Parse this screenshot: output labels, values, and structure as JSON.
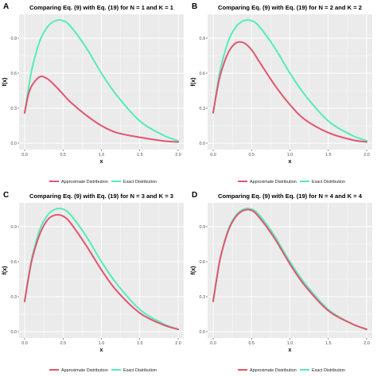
{
  "colors": {
    "approx": "#e0566e",
    "exact": "#54ecbb",
    "panel_bg": "#ebebeb",
    "grid": "#ffffff"
  },
  "legend": {
    "approx_label": "Approximate Distribution",
    "exact_label": "Exact Distribution"
  },
  "chart_data": [
    {
      "letter": "A",
      "type": "line",
      "title": "Comparing Eq. (9) with Eq. (19) for N = 1 and K = 1",
      "xlabel": "x",
      "ylabel": "f(x)",
      "xlim": [
        0,
        2
      ],
      "ylim": [
        0,
        1.05
      ],
      "xticks": [
        "0.0",
        "0.5",
        "1.0",
        "1.5",
        "2.0"
      ],
      "yticks": [
        "0.0",
        "0.3",
        "0.6",
        "0.9"
      ],
      "x": [
        0,
        0.05,
        0.1,
        0.2,
        0.3,
        0.4,
        0.5,
        0.6,
        0.8,
        1.0,
        1.2,
        1.5,
        1.8,
        2.0
      ],
      "series": [
        {
          "name": "Approximate Distribution",
          "values": [
            0.26,
            0.42,
            0.5,
            0.57,
            0.55,
            0.49,
            0.42,
            0.35,
            0.24,
            0.15,
            0.09,
            0.05,
            0.02,
            0.01
          ]
        },
        {
          "name": "Exact Distribution",
          "values": [
            0.26,
            0.47,
            0.65,
            0.88,
            1.0,
            1.05,
            1.05,
            1.0,
            0.82,
            0.6,
            0.41,
            0.19,
            0.07,
            0.02
          ]
        }
      ]
    },
    {
      "letter": "B",
      "type": "line",
      "title": "Comparing Eq. (9) with Eq. (19) for N = 2 and K = 2",
      "xlabel": "x",
      "ylabel": "f(x)",
      "xlim": [
        0,
        2
      ],
      "ylim": [
        0,
        1.05
      ],
      "xticks": [
        "0.0",
        "0.5",
        "1.0",
        "1.5",
        "2.0"
      ],
      "yticks": [
        "0.0",
        "0.3",
        "0.6",
        "0.9"
      ],
      "x": [
        0,
        0.05,
        0.1,
        0.2,
        0.3,
        0.4,
        0.5,
        0.6,
        0.8,
        1.0,
        1.2,
        1.5,
        1.8,
        2.0
      ],
      "series": [
        {
          "name": "Approximate Distribution",
          "values": [
            0.26,
            0.45,
            0.6,
            0.78,
            0.86,
            0.86,
            0.8,
            0.7,
            0.5,
            0.33,
            0.2,
            0.09,
            0.03,
            0.01
          ]
        },
        {
          "name": "Exact Distribution",
          "values": [
            0.26,
            0.47,
            0.65,
            0.88,
            1.0,
            1.05,
            1.05,
            1.0,
            0.82,
            0.6,
            0.41,
            0.19,
            0.07,
            0.02
          ]
        }
      ]
    },
    {
      "letter": "C",
      "type": "line",
      "title": "Comparing Eq. (9) with Eq. (19) for N = 3 and K = 3",
      "xlabel": "x",
      "ylabel": "f(x)",
      "xlim": [
        0,
        2
      ],
      "ylim": [
        0,
        1.05
      ],
      "xticks": [
        "0.0",
        "0.5",
        "1.0",
        "1.5",
        "2.0"
      ],
      "yticks": [
        "0.0",
        "0.3",
        "0.6",
        "0.9"
      ],
      "x": [
        0,
        0.05,
        0.1,
        0.2,
        0.3,
        0.4,
        0.5,
        0.6,
        0.8,
        1.0,
        1.2,
        1.5,
        1.8,
        2.0
      ],
      "series": [
        {
          "name": "Approximate Distribution",
          "values": [
            0.26,
            0.46,
            0.63,
            0.84,
            0.96,
            1.0,
            0.99,
            0.93,
            0.74,
            0.53,
            0.35,
            0.16,
            0.06,
            0.02
          ]
        },
        {
          "name": "Exact Distribution",
          "values": [
            0.26,
            0.47,
            0.65,
            0.88,
            1.0,
            1.05,
            1.05,
            1.0,
            0.82,
            0.6,
            0.41,
            0.19,
            0.07,
            0.02
          ]
        }
      ]
    },
    {
      "letter": "D",
      "type": "line",
      "title": "Comparing Eq. (9) with Eq. (19) for N = 4 and K = 4",
      "xlabel": "x",
      "ylabel": "f(x)",
      "xlim": [
        0,
        2
      ],
      "ylim": [
        0,
        1.05
      ],
      "xticks": [
        "0.0",
        "0.5",
        "1.0",
        "1.5",
        "2.0"
      ],
      "yticks": [
        "0.0",
        "0.3",
        "0.6",
        "0.9"
      ],
      "x": [
        0,
        0.05,
        0.1,
        0.2,
        0.3,
        0.4,
        0.5,
        0.6,
        0.8,
        1.0,
        1.2,
        1.5,
        1.8,
        2.0
      ],
      "series": [
        {
          "name": "Approximate Distribution",
          "values": [
            0.26,
            0.47,
            0.65,
            0.87,
            0.99,
            1.04,
            1.04,
            0.98,
            0.8,
            0.58,
            0.39,
            0.18,
            0.07,
            0.02
          ]
        },
        {
          "name": "Exact Distribution",
          "values": [
            0.26,
            0.47,
            0.65,
            0.88,
            1.0,
            1.05,
            1.05,
            1.0,
            0.82,
            0.6,
            0.41,
            0.19,
            0.07,
            0.02
          ]
        }
      ]
    }
  ]
}
